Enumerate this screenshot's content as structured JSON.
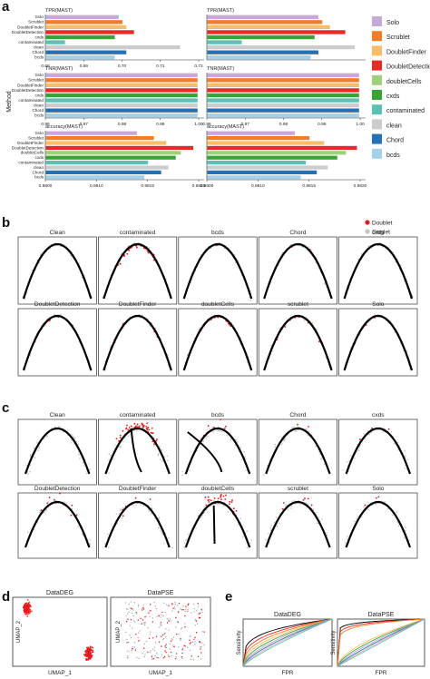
{
  "panels": {
    "a": "a",
    "b": "b",
    "c": "c",
    "d": "d",
    "e": "e"
  },
  "methods": [
    "Solo",
    "Scrublet",
    "DoubletFinder",
    "DoubletDetection",
    "cxds",
    "doubletCells",
    "contaminated",
    "clean",
    "Chord",
    "bcds"
  ],
  "colors": {
    "Solo": "#c5a9d6",
    "Scrublet": "#ef7e2b",
    "DoubletFinder": "#f7bd6a",
    "DoubletDetection": "#e52b25",
    "cxds": "#3aa335",
    "doubletCells": "#9ed07b",
    "contaminated": "#5cc0b2",
    "clean": "#cccccc",
    "Chord": "#2671b3",
    "bcds": "#a6cfe8",
    "doublet": "#e41a1c",
    "singlet": "#c4c4c4",
    "curve": "#000000"
  },
  "panel_a": {
    "method_axis_label": "Method",
    "ytick_order": [
      "Solo",
      "Scrublet",
      "DoubletFinder",
      "DoubletDetection",
      "cxds",
      "contaminated",
      "clean",
      "Chord",
      "bcds"
    ],
    "legend_order": [
      "Solo",
      "Scrublet",
      "DoubletFinder",
      "DoubletDetection",
      "doubletCells",
      "cxds",
      "contaminated",
      "clean",
      "Chord",
      "bcds"
    ],
    "chart_data": [
      {
        "type": "bar",
        "title": "TPR(MAST)",
        "xlim": [
          0.68,
          0.72
        ],
        "xticks": [
          "0.68",
          "0.69",
          "0.70",
          "0.71",
          "0.72"
        ],
        "series": [
          "Solo",
          "Scrublet",
          "DoubletFinder",
          "DoubletDetection",
          "cxds",
          "contaminated",
          "clean",
          "Chord",
          "bcds"
        ],
        "values": [
          0.699,
          0.7,
          0.701,
          0.703,
          0.698,
          0.685,
          0.715,
          0.701,
          0.698
        ]
      },
      {
        "type": "bar",
        "title": "TPR(MAST)",
        "xlim": [
          0.68,
          0.72
        ],
        "xticks": [
          "",
          "",
          "",
          "",
          ""
        ],
        "series": [
          "Solo",
          "Scrublet",
          "DoubletFinder",
          "DoubletDetection",
          "cxds",
          "contaminated",
          "clean",
          "Chord",
          "bcds"
        ],
        "values": [
          0.709,
          0.71,
          0.712,
          0.716,
          0.708,
          0.689,
          0.7185,
          0.709,
          0.707
        ]
      },
      {
        "type": "bar",
        "title": "TNR(MAST)",
        "xlim": [
          0.96,
          1.0
        ],
        "xticks": [
          "0.96",
          "0.97",
          "0.98",
          "0.99",
          "1.00"
        ],
        "series": [
          "Solo",
          "Scrublet",
          "DoubletFinder",
          "DoubletDetection",
          "cxds",
          "contaminated",
          "clean",
          "Chord",
          "bcds"
        ],
        "values": [
          0.9996,
          0.9996,
          0.9996,
          0.9996,
          0.9996,
          0.9996,
          0.9996,
          0.9996,
          0.9996
        ]
      },
      {
        "type": "bar",
        "title": "TNR(MAST)",
        "xlim": [
          0.96,
          1.0
        ],
        "xticks": [
          "0.96",
          "0.97",
          "0.98",
          "0.99",
          "1.00"
        ],
        "series": [
          "Solo",
          "Scrublet",
          "DoubletFinder",
          "DoubletDetection",
          "cxds",
          "contaminated",
          "clean",
          "Chord",
          "bcds"
        ],
        "values": [
          0.9996,
          0.9996,
          0.9996,
          0.9996,
          0.9996,
          0.9996,
          0.9996,
          0.9996,
          0.9996
        ]
      },
      {
        "type": "bar",
        "title": "accuracy(MAST)",
        "xlim": [
          0.98,
          0.9821
        ],
        "xticks": [
          "0.9800",
          "0.9810",
          "0.9815",
          "0.9820"
        ],
        "series": [
          "Solo",
          "Scrublet",
          "DoubletFinder",
          "DoubletDetection",
          "doubletCells",
          "cxds",
          "contaminated",
          "clean",
          "Chord",
          "bcds"
        ],
        "values": [
          0.98125,
          0.98148,
          0.98165,
          0.98202,
          0.98185,
          0.98178,
          0.9814,
          0.98168,
          0.98158,
          0.98135
        ]
      },
      {
        "type": "bar",
        "title": "accuracy(MAST)",
        "xlim": [
          0.98,
          0.9821
        ],
        "xticks": [
          "0.9800",
          "0.9810",
          "0.9815",
          "0.9820"
        ],
        "series": [
          "Solo",
          "Scrublet",
          "DoubletFinder",
          "DoubletDetection",
          "doubletCells",
          "cxds",
          "contaminated",
          "clean",
          "Chord",
          "bcds"
        ],
        "values": [
          0.9812,
          0.9814,
          0.9816,
          0.98205,
          0.9819,
          0.98178,
          0.98135,
          0.98165,
          0.9815,
          0.98128
        ]
      }
    ]
  },
  "panel_b": {
    "legend": [
      "Doublet",
      "Singlet"
    ],
    "titles": [
      "Clean",
      "contaminated",
      "bcds",
      "Chord",
      "cxds",
      "DoubletDetection",
      "DoubletFinder",
      "doubletCells",
      "scrublet",
      "Solo"
    ]
  },
  "panel_c": {
    "titles": [
      "Clean",
      "contaminated",
      "bcds",
      "Chord",
      "cxds",
      "DoubletDetection",
      "DoubletFinder",
      "doubletCells",
      "scrublet",
      "Solo"
    ]
  },
  "panel_d": {
    "titles": [
      "DataDEG",
      "DataPSE"
    ],
    "xlabel": "UMAP_1",
    "ylabel": "UMAP_2"
  },
  "panel_e": {
    "titles": [
      "DataDEG",
      "DataPSE"
    ],
    "xlabel": "FPR",
    "ylabel": "Sensitivity"
  }
}
